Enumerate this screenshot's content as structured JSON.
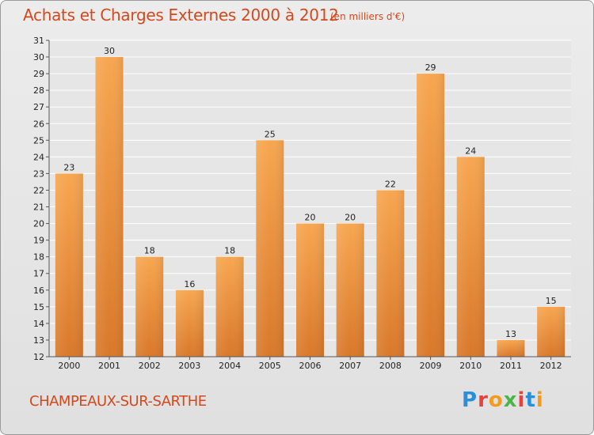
{
  "header": {
    "title": "Achats et Charges Externes 2000 à 2012",
    "subtitle": "(en milliers d'€)"
  },
  "footer": {
    "commune": "CHAMPEAUX-SUR-SARTHE",
    "logo_text": "Proxiti",
    "logo_colors": [
      "#2a8fd8",
      "#e8413a",
      "#f39a1f",
      "#4bb54a",
      "#e8413a",
      "#2a8fd8",
      "#f39a1f"
    ]
  },
  "colors": {
    "bar_light": "#f7a650",
    "bar_dark": "#d9782a",
    "accent": "#d14a1e"
  },
  "chart_data": {
    "type": "bar",
    "title": "Achats et Charges Externes 2000 à 2012",
    "subtitle": "(en milliers d'€)",
    "categories": [
      "2000",
      "2001",
      "2002",
      "2003",
      "2004",
      "2005",
      "2006",
      "2007",
      "2008",
      "2009",
      "2010",
      "2011",
      "2012"
    ],
    "values": [
      23,
      30,
      18,
      16,
      18,
      25,
      20,
      20,
      22,
      29,
      24,
      13,
      15
    ],
    "ylim": [
      12,
      31
    ],
    "yticks": [
      12,
      13,
      14,
      15,
      16,
      17,
      18,
      19,
      20,
      21,
      22,
      23,
      24,
      25,
      26,
      27,
      28,
      29,
      30,
      31
    ],
    "grid": true,
    "xlabel": "",
    "ylabel": ""
  }
}
